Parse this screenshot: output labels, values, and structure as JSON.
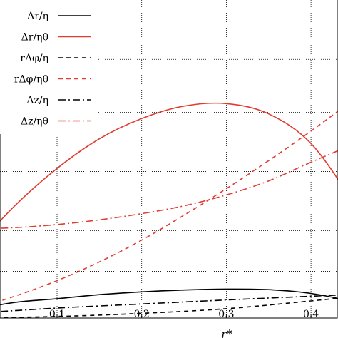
{
  "chart_data": {
    "type": "line",
    "xlabel": "r*",
    "ylabel": "",
    "xlim": [
      0.0,
      0.47
    ],
    "ylim": [
      0.0,
      1.0
    ],
    "grid": true,
    "legend_position": "top-left",
    "x_ticks": [
      {
        "value": 0.1,
        "label": "0.1"
      },
      {
        "value": 0.2,
        "label": "0.2"
      },
      {
        "value": 0.3,
        "label": "0.3"
      },
      {
        "value": 0.4,
        "label": "0.4"
      }
    ],
    "y_grid": [
      0.15,
      0.28,
      0.47,
      0.66,
      0.83
    ],
    "series": [
      {
        "name": "Δr/η",
        "color": "#000000",
        "dash": "solid",
        "x": [
          0.0,
          0.05,
          0.1,
          0.15,
          0.2,
          0.25,
          0.3,
          0.35,
          0.4,
          0.45,
          0.47
        ],
        "y": [
          0.026,
          0.05,
          0.062,
          0.075,
          0.084,
          0.09,
          0.093,
          0.091,
          0.079,
          0.052,
          0.035
        ]
      },
      {
        "name": "Δr/ηθ",
        "color": "#e03c31",
        "dash": "solid",
        "x": [
          0.0,
          0.05,
          0.1,
          0.15,
          0.2,
          0.25,
          0.3,
          0.35,
          0.4,
          0.45,
          0.47
        ],
        "y": [
          0.215,
          0.36,
          0.48,
          0.575,
          0.64,
          0.68,
          0.688,
          0.655,
          0.56,
          0.37,
          0.27
        ]
      },
      {
        "name": "rΔφ/η",
        "color": "#000000",
        "dash": "6,5",
        "x": [
          0.0,
          0.1,
          0.2,
          0.3,
          0.4,
          0.47
        ],
        "y": [
          0.0,
          0.005,
          0.015,
          0.03,
          0.055,
          0.075
        ]
      },
      {
        "name": "rΔφ/ηθ",
        "color": "#e03c31",
        "dash": "6,5",
        "x": [
          0.0,
          0.05,
          0.1,
          0.15,
          0.2,
          0.25,
          0.3,
          0.35,
          0.4,
          0.47
        ],
        "y": [
          0.028,
          0.07,
          0.12,
          0.18,
          0.25,
          0.33,
          0.415,
          0.505,
          0.6,
          0.74
        ]
      },
      {
        "name": "Δz/η",
        "color": "#000000",
        "dash": "10,4,2,4",
        "x": [
          0.0,
          0.1,
          0.2,
          0.3,
          0.4,
          0.47
        ],
        "y": [
          0.015,
          0.032,
          0.045,
          0.058,
          0.07,
          0.078
        ]
      },
      {
        "name": "Δz/ηθ",
        "color": "#e03c31",
        "dash": "10,4,2,4",
        "x": [
          0.0,
          0.05,
          0.1,
          0.15,
          0.2,
          0.25,
          0.3,
          0.35,
          0.4,
          0.47
        ],
        "y": [
          0.285,
          0.29,
          0.3,
          0.315,
          0.335,
          0.36,
          0.395,
          0.44,
          0.5,
          0.58
        ]
      }
    ]
  }
}
